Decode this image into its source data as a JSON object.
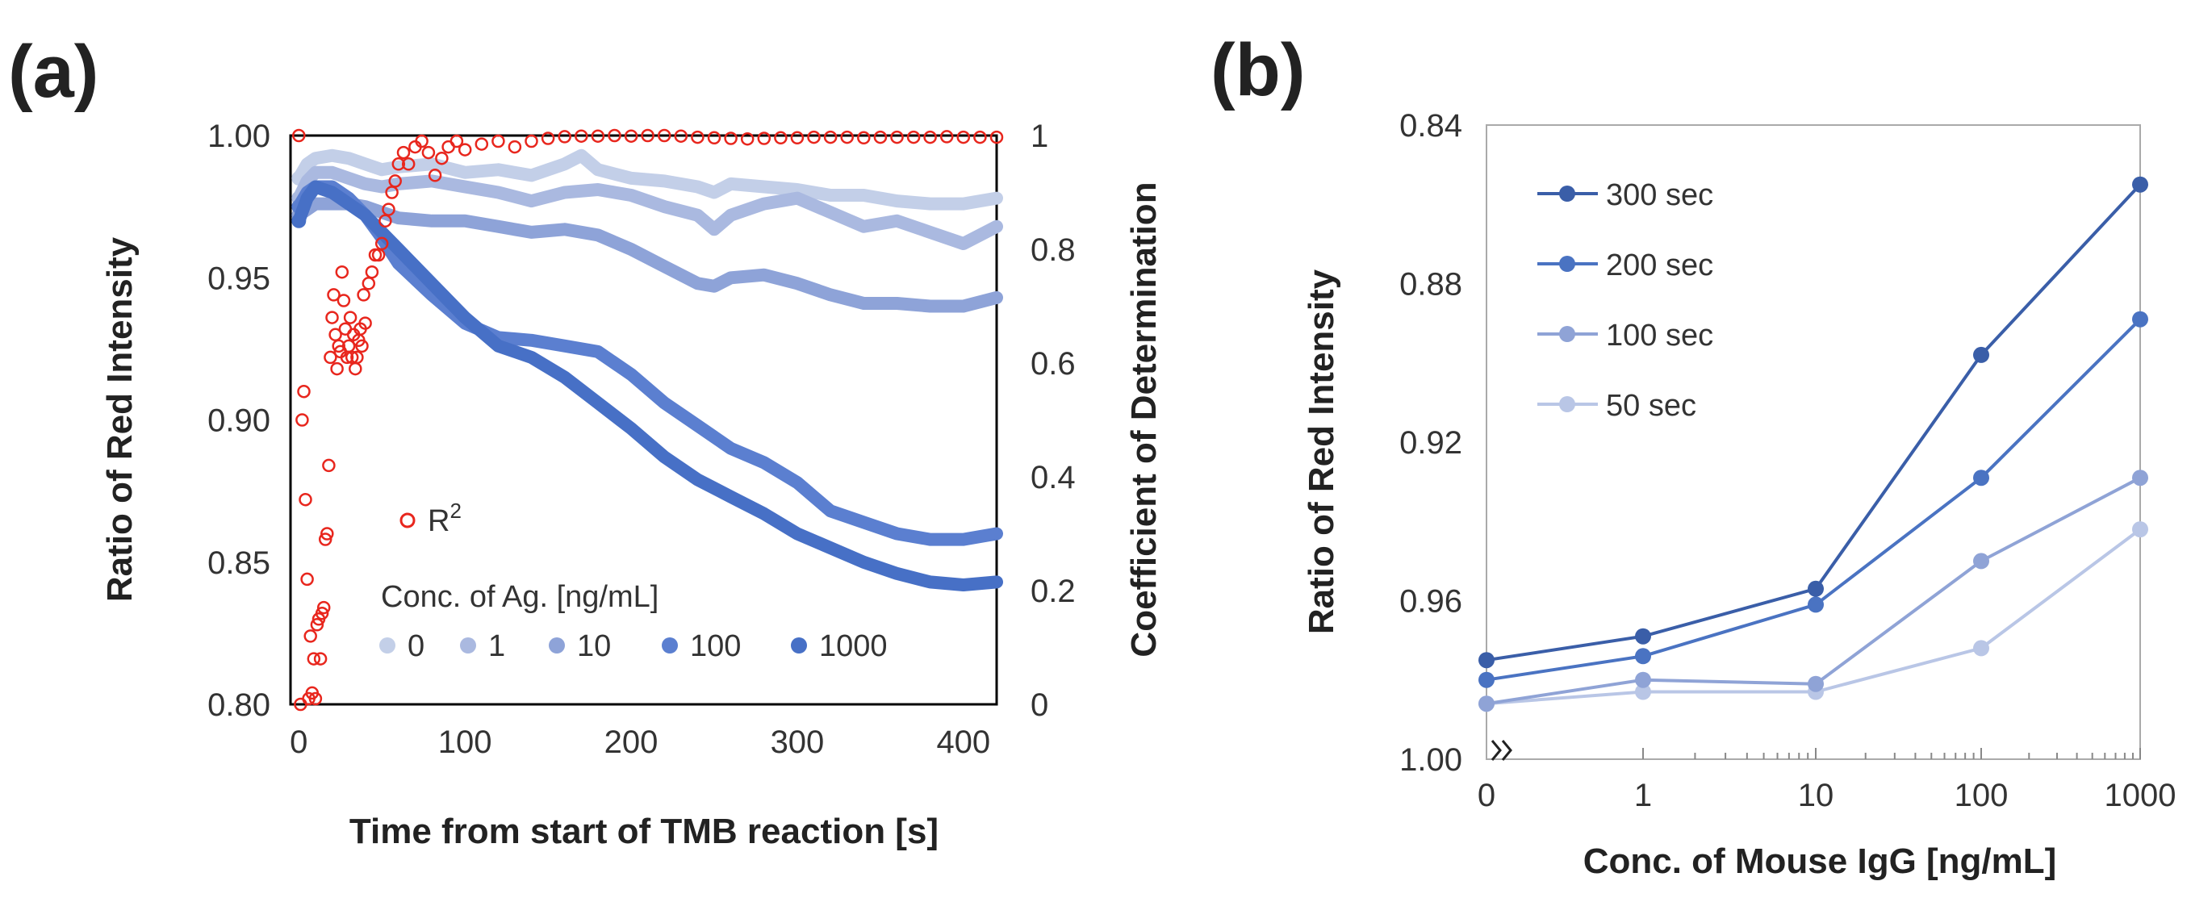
{
  "chart_data": [
    {
      "panel": "(a)",
      "type": "scatter",
      "xlabel": "Time from start of TMB reaction [s]",
      "ylabel": "Ratio of Red Intensity",
      "y2label": "Coefficient of Determination",
      "xlim": [
        -5,
        420
      ],
      "ylim": [
        0.8,
        1.0
      ],
      "y2lim": [
        0,
        1
      ],
      "xticks": [
        "0",
        "100",
        "200",
        "300",
        "400"
      ],
      "yticks": [
        "0.80",
        "0.85",
        "0.90",
        "0.95",
        "1.00"
      ],
      "y2ticks": [
        "0",
        "0.2",
        "0.4",
        "0.6",
        "0.8",
        "1"
      ],
      "legend_title": "Conc. of Ag. [ng/mL]",
      "series": [
        {
          "name": "0",
          "color": "#c3cfe8",
          "x": [
            0,
            5,
            10,
            20,
            30,
            40,
            50,
            60,
            80,
            100,
            120,
            140,
            160,
            170,
            180,
            200,
            220,
            240,
            250,
            260,
            280,
            300,
            320,
            340,
            360,
            380,
            400,
            420
          ],
          "y": [
            0.985,
            0.99,
            0.992,
            0.993,
            0.992,
            0.99,
            0.988,
            0.989,
            0.99,
            0.987,
            0.988,
            0.986,
            0.99,
            0.993,
            0.988,
            0.985,
            0.984,
            0.982,
            0.98,
            0.983,
            0.982,
            0.981,
            0.979,
            0.979,
            0.977,
            0.976,
            0.976,
            0.978
          ]
        },
        {
          "name": "1",
          "color": "#aab9e0",
          "x": [
            0,
            5,
            10,
            20,
            30,
            40,
            50,
            60,
            80,
            100,
            120,
            140,
            160,
            180,
            200,
            220,
            240,
            250,
            260,
            280,
            300,
            320,
            340,
            360,
            380,
            400,
            420
          ],
          "y": [
            0.978,
            0.984,
            0.987,
            0.987,
            0.985,
            0.983,
            0.982,
            0.983,
            0.984,
            0.982,
            0.98,
            0.977,
            0.98,
            0.981,
            0.979,
            0.975,
            0.972,
            0.967,
            0.972,
            0.976,
            0.978,
            0.973,
            0.968,
            0.97,
            0.966,
            0.962,
            0.968
          ]
        },
        {
          "name": "10",
          "color": "#8ea3d8",
          "x": [
            0,
            10,
            20,
            30,
            40,
            50,
            60,
            80,
            100,
            120,
            140,
            160,
            180,
            200,
            220,
            240,
            250,
            260,
            280,
            300,
            320,
            340,
            360,
            380,
            400,
            420
          ],
          "y": [
            0.972,
            0.976,
            0.976,
            0.976,
            0.975,
            0.973,
            0.971,
            0.97,
            0.97,
            0.968,
            0.966,
            0.967,
            0.965,
            0.96,
            0.954,
            0.948,
            0.947,
            0.95,
            0.951,
            0.948,
            0.944,
            0.941,
            0.941,
            0.94,
            0.94,
            0.943
          ]
        },
        {
          "name": "100",
          "color": "#5b7fd0",
          "x": [
            0,
            5,
            10,
            20,
            30,
            40,
            50,
            60,
            80,
            100,
            120,
            140,
            150,
            160,
            180,
            200,
            220,
            240,
            260,
            280,
            300,
            320,
            340,
            360,
            380,
            400,
            420
          ],
          "y": [
            0.975,
            0.98,
            0.982,
            0.982,
            0.978,
            0.972,
            0.964,
            0.955,
            0.944,
            0.934,
            0.929,
            0.928,
            0.927,
            0.926,
            0.924,
            0.916,
            0.906,
            0.898,
            0.89,
            0.885,
            0.878,
            0.868,
            0.864,
            0.86,
            0.858,
            0.858,
            0.86
          ]
        },
        {
          "name": "1000",
          "color": "#4770c6",
          "x": [
            0,
            5,
            10,
            20,
            30,
            40,
            50,
            60,
            80,
            100,
            120,
            140,
            160,
            180,
            200,
            220,
            240,
            260,
            280,
            300,
            320,
            340,
            360,
            380,
            400,
            420
          ],
          "y": [
            0.97,
            0.978,
            0.982,
            0.98,
            0.976,
            0.972,
            0.966,
            0.96,
            0.948,
            0.936,
            0.926,
            0.922,
            0.915,
            0.906,
            0.897,
            0.887,
            0.879,
            0.873,
            0.867,
            0.86,
            0.855,
            0.85,
            0.846,
            0.843,
            0.842,
            0.843
          ]
        }
      ],
      "r2_series": {
        "name": "R",
        "superscript": "2",
        "color": "#e8261d",
        "axis": "y2",
        "x": [
          0,
          1,
          2,
          3,
          4,
          5,
          6,
          7,
          8,
          9,
          10,
          11,
          12,
          13,
          14,
          15,
          16,
          17,
          18,
          19,
          20,
          21,
          22,
          23,
          24,
          25,
          26,
          27,
          28,
          29,
          30,
          31,
          32,
          33,
          34,
          35,
          36,
          37,
          38,
          39,
          40,
          42,
          44,
          46,
          48,
          50,
          52,
          54,
          56,
          58,
          60,
          63,
          66,
          70,
          74,
          78,
          82,
          86,
          90,
          95,
          100,
          110,
          120,
          130,
          140,
          150,
          160,
          170,
          180,
          190,
          200,
          210,
          220,
          230,
          240,
          250,
          260,
          270,
          280,
          290,
          300,
          310,
          320,
          330,
          340,
          350,
          360,
          370,
          380,
          390,
          400,
          410,
          420
        ],
        "y": [
          1.0,
          0.0,
          0.5,
          0.55,
          0.36,
          0.22,
          0.01,
          0.12,
          0.02,
          0.08,
          0.01,
          0.14,
          0.15,
          0.08,
          0.16,
          0.17,
          0.29,
          0.3,
          0.42,
          0.61,
          0.68,
          0.72,
          0.65,
          0.59,
          0.63,
          0.62,
          0.76,
          0.71,
          0.66,
          0.61,
          0.63,
          0.68,
          0.61,
          0.65,
          0.59,
          0.61,
          0.64,
          0.66,
          0.63,
          0.72,
          0.67,
          0.74,
          0.76,
          0.79,
          0.79,
          0.81,
          0.85,
          0.87,
          0.9,
          0.92,
          0.95,
          0.97,
          0.95,
          0.98,
          0.99,
          0.97,
          0.93,
          0.96,
          0.98,
          0.99,
          0.975,
          0.985,
          0.99,
          0.98,
          0.99,
          0.995,
          0.998,
          0.999,
          0.999,
          1.0,
          0.999,
          1.0,
          1.0,
          0.999,
          0.997,
          0.996,
          0.995,
          0.994,
          0.995,
          0.996,
          0.996,
          0.997,
          0.997,
          0.997,
          0.996,
          0.997,
          0.997,
          0.997,
          0.997,
          0.998,
          0.997,
          0.997,
          0.997
        ]
      }
    },
    {
      "panel": "(b)",
      "type": "line",
      "xlabel": "Conc. of Mouse IgG [ng/mL]",
      "ylabel": "Ratio of Red Intensity",
      "x_scale": "log",
      "x": [
        0,
        1,
        10,
        100,
        1000
      ],
      "xticks": [
        "0",
        "1",
        "10",
        "100",
        "1000"
      ],
      "y_reversed": true,
      "ylim": [
        0.84,
        1.0
      ],
      "yticks": [
        "0.84",
        "0.88",
        "0.92",
        "0.96",
        "1.00"
      ],
      "series": [
        {
          "name": "300 sec",
          "color": "#3a5ea8",
          "values": [
            0.975,
            0.969,
            0.957,
            0.898,
            0.855
          ]
        },
        {
          "name": "200 sec",
          "color": "#4a73c2",
          "values": [
            0.98,
            0.974,
            0.961,
            0.929,
            0.889
          ]
        },
        {
          "name": "100 sec",
          "color": "#8fa3d6",
          "values": [
            0.986,
            0.98,
            0.981,
            0.95,
            0.929
          ]
        },
        {
          "name": "50 sec",
          "color": "#b9c6e6",
          "values": [
            0.986,
            0.983,
            0.983,
            0.972,
            0.942
          ]
        }
      ]
    }
  ]
}
